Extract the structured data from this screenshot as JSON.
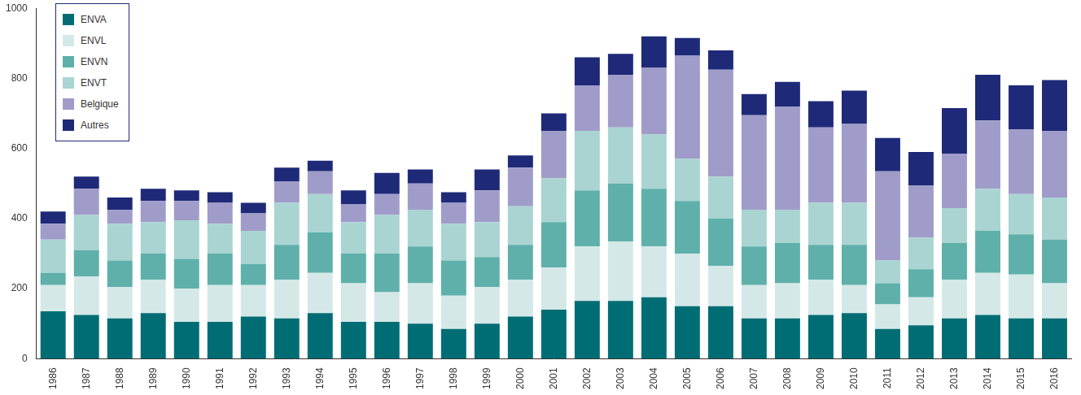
{
  "chart_data": {
    "type": "bar",
    "stacked": true,
    "grid": false,
    "legend": "upper left",
    "categories": [
      "1986",
      "1987",
      "1988",
      "1989",
      "1990",
      "1991",
      "1992",
      "1993",
      "1994",
      "1995",
      "1996",
      "1997",
      "1998",
      "1999",
      "2000",
      "2001",
      "2002",
      "2003",
      "2004",
      "2005",
      "2006",
      "2007",
      "2008",
      "2009",
      "2010",
      "2011",
      "2012",
      "2013",
      "2014",
      "2015",
      "2016"
    ],
    "ylim": [
      0,
      1000
    ],
    "yticks": [
      0,
      200,
      400,
      600,
      800,
      1000
    ],
    "series": [
      {
        "name": "ENVA",
        "color": "#006d74",
        "values": [
          135,
          125,
          115,
          130,
          105,
          105,
          120,
          115,
          130,
          105,
          105,
          100,
          85,
          100,
          120,
          140,
          165,
          165,
          175,
          150,
          150,
          115,
          115,
          125,
          130,
          85,
          95,
          115,
          125,
          115,
          115
        ]
      },
      {
        "name": "ENVL",
        "color": "#d5e8e8",
        "values": [
          75,
          110,
          90,
          95,
          95,
          105,
          90,
          110,
          115,
          110,
          85,
          115,
          95,
          105,
          105,
          120,
          155,
          170,
          145,
          150,
          115,
          95,
          100,
          100,
          80,
          70,
          80,
          110,
          120,
          125,
          100
        ]
      },
      {
        "name": "ENVN",
        "color": "#5fb0aa",
        "values": [
          35,
          75,
          75,
          75,
          85,
          90,
          60,
          100,
          115,
          85,
          110,
          105,
          100,
          85,
          100,
          130,
          160,
          165,
          165,
          150,
          135,
          110,
          115,
          100,
          115,
          60,
          80,
          105,
          120,
          115,
          125
        ]
      },
      {
        "name": "ENVT",
        "color": "#a9d4d2",
        "values": [
          95,
          100,
          105,
          90,
          110,
          85,
          95,
          120,
          110,
          90,
          110,
          105,
          105,
          100,
          110,
          125,
          170,
          160,
          155,
          120,
          120,
          105,
          95,
          120,
          120,
          65,
          90,
          100,
          120,
          115,
          120
        ]
      },
      {
        "name": "Belgique",
        "color": "#a09cc9",
        "values": [
          45,
          75,
          40,
          60,
          55,
          60,
          50,
          60,
          65,
          50,
          60,
          75,
          60,
          90,
          110,
          135,
          130,
          150,
          190,
          295,
          305,
          270,
          295,
          215,
          225,
          255,
          150,
          155,
          195,
          185,
          190
        ]
      },
      {
        "name": "Autres",
        "color": "#1e2a78",
        "values": [
          35,
          35,
          35,
          35,
          30,
          30,
          30,
          40,
          30,
          40,
          60,
          40,
          30,
          60,
          35,
          50,
          80,
          60,
          90,
          50,
          55,
          60,
          70,
          75,
          95,
          95,
          95,
          130,
          130,
          125,
          145
        ]
      }
    ]
  }
}
